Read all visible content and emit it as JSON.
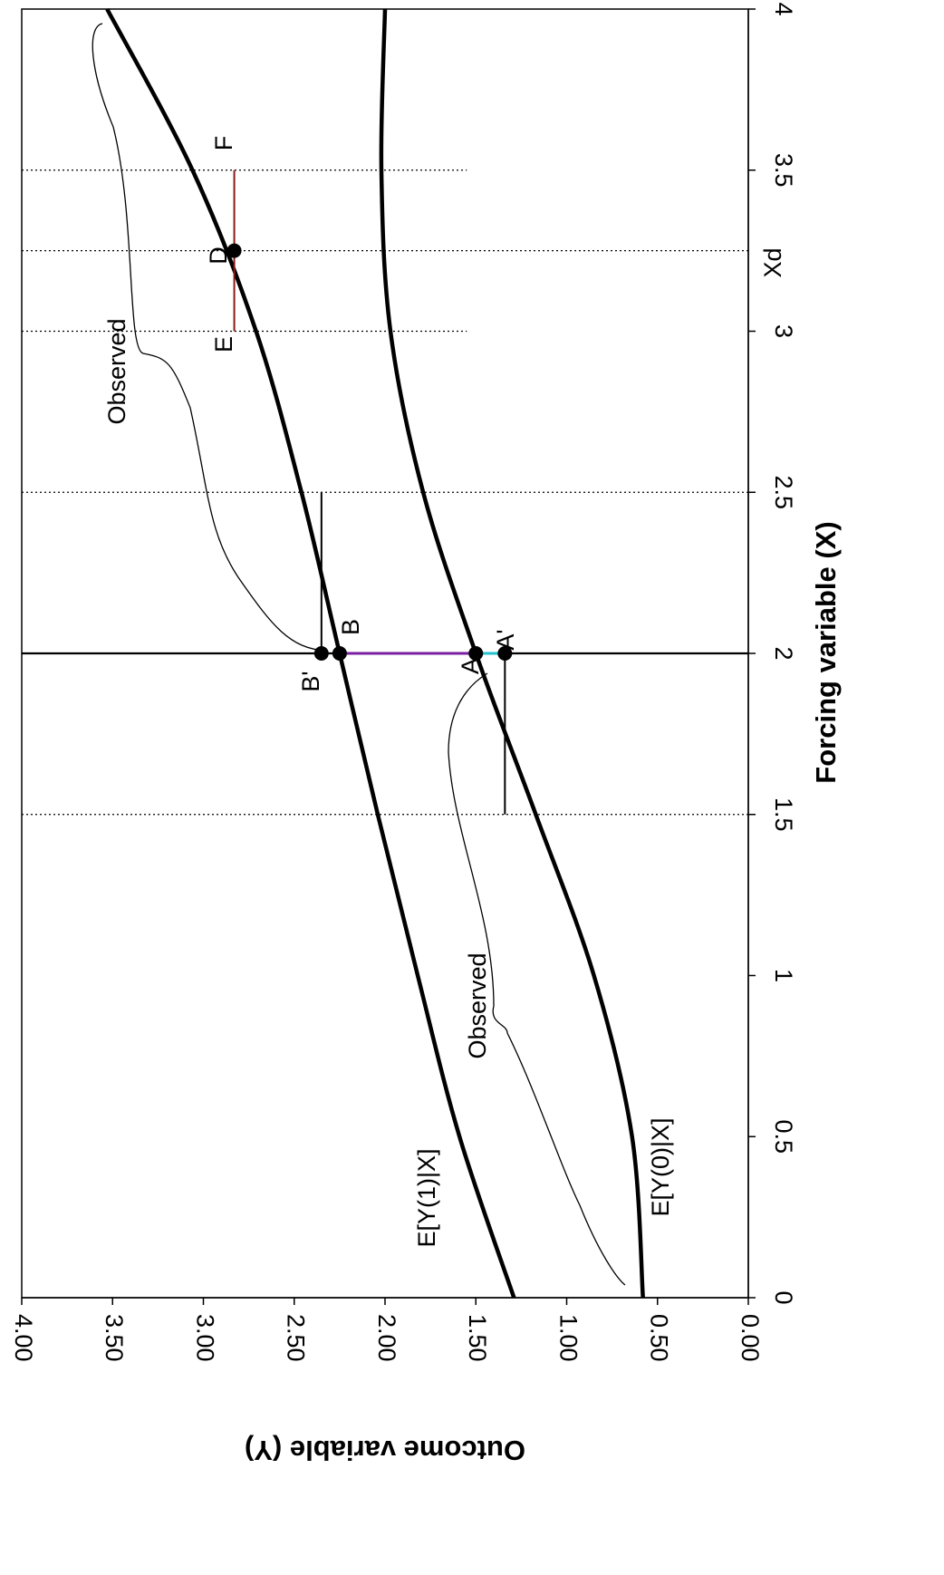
{
  "chart_data": {
    "type": "line",
    "orientation": "rotated-90-clockwise",
    "xlabel": "Forcing variable (X)",
    "ylabel": "Outcome variable (Y)",
    "xlim": [
      0,
      4
    ],
    "ylim": [
      0,
      4
    ],
    "x_ticks": [
      "0",
      "0.5",
      "1",
      "1.5",
      "2",
      "2.5",
      "3",
      "3.5",
      "4"
    ],
    "y_ticks": [
      "0.00",
      "0.50",
      "1.00",
      "1.50",
      "2.00",
      "2.50",
      "3.00",
      "3.50",
      "4.00"
    ],
    "series": [
      {
        "name": "E[Y(1)|X]",
        "x": [
          0,
          0.5,
          1,
          1.5,
          2,
          2.5,
          3,
          3.5,
          4
        ],
        "y": [
          1.29,
          1.59,
          1.82,
          2.04,
          2.25,
          2.46,
          2.71,
          3.06,
          3.53
        ]
      },
      {
        "name": "E[Y(0)|X]",
        "x": [
          0,
          0.5,
          1,
          1.5,
          2,
          2.5,
          3,
          3.5,
          4
        ],
        "y": [
          0.58,
          0.64,
          0.85,
          1.17,
          1.5,
          1.79,
          1.97,
          2.02,
          2.0
        ]
      }
    ],
    "points": [
      {
        "label": "A",
        "x": 2,
        "y": 1.5
      },
      {
        "label": "A'",
        "x": 2,
        "y": 1.34
      },
      {
        "label": "B",
        "x": 2,
        "y": 2.25
      },
      {
        "label": "B'",
        "x": 2,
        "y": 2.35
      },
      {
        "label": "D",
        "x": 3.25,
        "y": 2.83
      }
    ],
    "segments": [
      {
        "from": "A",
        "to": "B",
        "color": "#7b1fa2"
      },
      {
        "from": "A",
        "to": "A'",
        "color": "#22c3cf"
      },
      {
        "label": "E–F",
        "x": [
          3.0,
          3.5
        ],
        "y": 2.83,
        "color": "#8b1a1a"
      },
      {
        "label": "A' bandwidth",
        "x": [
          1.5,
          2.0
        ],
        "y": 1.34,
        "color": "#000000"
      },
      {
        "label": "B' bandwidth",
        "x": [
          2.0,
          2.5
        ],
        "y": 2.35,
        "color": "#000000"
      }
    ],
    "vertical_lines": [
      {
        "x": 2.0,
        "style": "solid"
      },
      {
        "x": 1.5,
        "style": "dotted"
      },
      {
        "x": 2.5,
        "style": "dotted"
      },
      {
        "x": 3.0,
        "style": "dotted"
      },
      {
        "x": 3.25,
        "style": "dotted"
      },
      {
        "x": 3.5,
        "style": "dotted"
      }
    ],
    "annotations": [
      {
        "text": "E[Y(1)|X]"
      },
      {
        "text": "E[Y(0)|X]"
      },
      {
        "text": "Observed"
      },
      {
        "text": "Observed"
      },
      {
        "text": "E"
      },
      {
        "text": "F"
      },
      {
        "text": "Xd"
      }
    ]
  }
}
